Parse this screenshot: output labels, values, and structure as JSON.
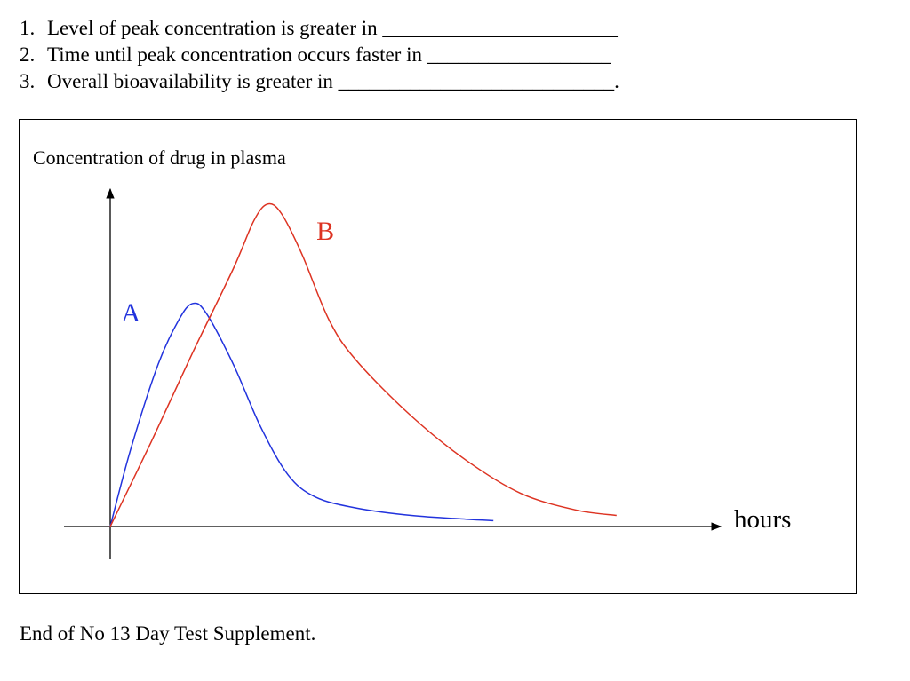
{
  "questions": [
    {
      "number": "1.",
      "text": "Level of peak concentration is greater in _______________________"
    },
    {
      "number": "2.",
      "text": "Time until peak concentration occurs faster in __________________"
    },
    {
      "number": "3.",
      "text": "Overall bioavailability is greater in ___________________________."
    }
  ],
  "footer": "End of No 13 Day Test Supplement.",
  "chart_data": {
    "type": "line",
    "ylabel": "Concentration of drug in plasma",
    "xlabel": "hours",
    "grid": false,
    "series": [
      {
        "name": "A",
        "color": "#2233dd",
        "points": [
          [
            0,
            0
          ],
          [
            0.3,
            2.1
          ],
          [
            0.7,
            4.4
          ],
          [
            1.0,
            5.6
          ],
          [
            1.2,
            6.05
          ],
          [
            1.4,
            5.8
          ],
          [
            1.8,
            4.4
          ],
          [
            2.2,
            2.7
          ],
          [
            2.6,
            1.4
          ],
          [
            3.0,
            0.8
          ],
          [
            3.6,
            0.5
          ],
          [
            4.4,
            0.3
          ],
          [
            5.2,
            0.2
          ],
          [
            5.6,
            0.16
          ]
        ]
      },
      {
        "name": "B",
        "color": "#dd3322",
        "points": [
          [
            0,
            0
          ],
          [
            0.6,
            2.3
          ],
          [
            1.2,
            4.7
          ],
          [
            1.8,
            7.0
          ],
          [
            2.1,
            8.3
          ],
          [
            2.3,
            8.75
          ],
          [
            2.5,
            8.5
          ],
          [
            2.8,
            7.4
          ],
          [
            3.2,
            5.6
          ],
          [
            3.6,
            4.5
          ],
          [
            4.4,
            3.0
          ],
          [
            5.2,
            1.8
          ],
          [
            6.0,
            0.9
          ],
          [
            6.8,
            0.45
          ],
          [
            7.4,
            0.3
          ]
        ]
      }
    ]
  }
}
